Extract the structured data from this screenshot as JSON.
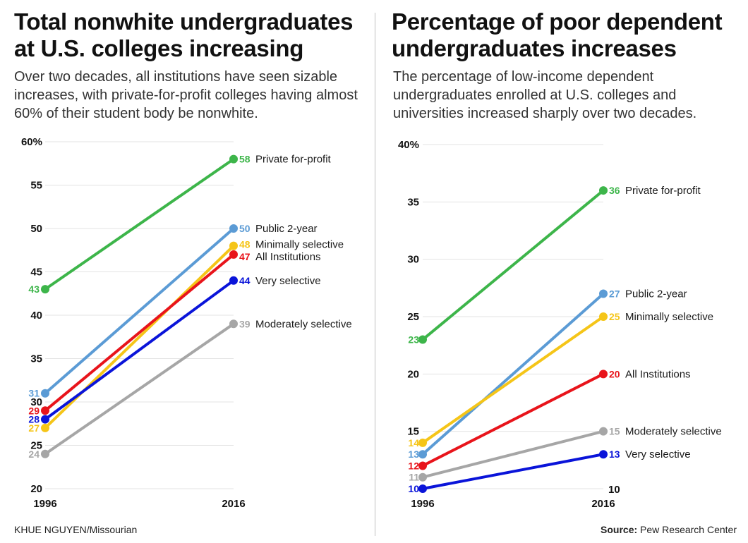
{
  "left": {
    "title": "Total nonwhite undergraduates at U.S. colleges increasing",
    "subtitle": "Over two decades, all institutions have seen sizable increases, with private-for-profit colleges having almost 60% of their student body be nonwhite."
  },
  "right": {
    "title": "Percentage of poor dependent undergraduates increases",
    "subtitle": "The percentage of low-income dependent undergraduates enrolled at U.S. colleges and universities increased sharply over two decades."
  },
  "footer": {
    "author": "KHUE NGUYEN",
    "outlet": "/Missourian",
    "source_label": "Source:",
    "source_value": "Pew Research Center"
  },
  "colors": {
    "private_for_profit": "#3db54a",
    "public_2_year": "#5b9bd5",
    "minimally_selective": "#f5c518",
    "all_institutions": "#e8141b",
    "very_selective": "#0a14d9",
    "moderately_selective": "#a6a6a6"
  },
  "chart_data": [
    {
      "type": "line",
      "title": "Total nonwhite undergraduates at U.S. colleges increasing",
      "x": [
        "1996",
        "2016"
      ],
      "ylim": [
        20,
        60
      ],
      "yticks": [
        "20",
        "25",
        "30",
        "35",
        "40",
        "45",
        "50",
        "55",
        "60%"
      ],
      "ytick_values": [
        20,
        25,
        30,
        35,
        40,
        45,
        50,
        55,
        60
      ],
      "grid": true,
      "series": [
        {
          "name": "Private for-profit",
          "key": "private_for_profit",
          "values": [
            43,
            58
          ]
        },
        {
          "name": "Public 2-year",
          "key": "public_2_year",
          "values": [
            31,
            50
          ]
        },
        {
          "name": "Minimally selective",
          "key": "minimally_selective",
          "values": [
            27,
            48
          ]
        },
        {
          "name": "All Institutions",
          "key": "all_institutions",
          "values": [
            29,
            47
          ]
        },
        {
          "name": "Very selective",
          "key": "very_selective",
          "values": [
            28,
            44
          ]
        },
        {
          "name": "Moderately selective",
          "key": "moderately_selective",
          "values": [
            24,
            39
          ]
        }
      ]
    },
    {
      "type": "line",
      "title": "Percentage of poor dependent undergraduates increases",
      "x": [
        "1996",
        "2016"
      ],
      "ylim": [
        10,
        40
      ],
      "yticks": [
        "15",
        "20",
        "25",
        "30",
        "35",
        "40%"
      ],
      "ytick_values": [
        15,
        20,
        25,
        30,
        35,
        40
      ],
      "bottom_tick_right": "10",
      "grid": true,
      "series": [
        {
          "name": "Private for-profit",
          "key": "private_for_profit",
          "values": [
            23,
            36
          ]
        },
        {
          "name": "Public 2-year",
          "key": "public_2_year",
          "values": [
            13,
            27
          ]
        },
        {
          "name": "Minimally selective",
          "key": "minimally_selective",
          "values": [
            14,
            25
          ]
        },
        {
          "name": "All Institutions",
          "key": "all_institutions",
          "values": [
            12,
            20
          ]
        },
        {
          "name": "Moderately selective",
          "key": "moderately_selective",
          "values": [
            11,
            15
          ]
        },
        {
          "name": "Very selective",
          "key": "very_selective",
          "values": [
            10,
            13
          ]
        }
      ]
    }
  ]
}
